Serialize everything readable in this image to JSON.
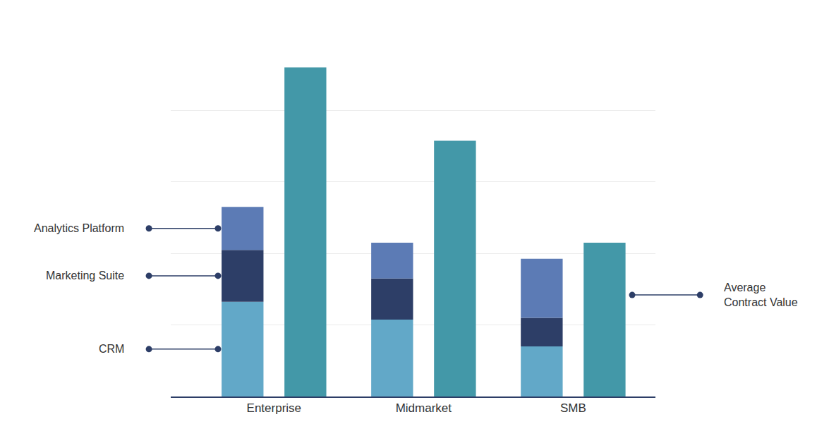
{
  "chart_data": {
    "type": "bar",
    "categories": [
      "Enterprise",
      "Midmarket",
      "SMB"
    ],
    "series": [
      {
        "name": "CRM",
        "color": "#62a8c8",
        "stacked": true,
        "values": [
          26.5,
          21.5,
          14
        ]
      },
      {
        "name": "Marketing Suite",
        "color": "#2d3e67",
        "stacked": true,
        "values": [
          14.5,
          11.5,
          8
        ]
      },
      {
        "name": "Analytics Platform",
        "color": "#5c7bb5",
        "stacked": true,
        "values": [
          12,
          10,
          16.5
        ]
      },
      {
        "name": "Average Contract Value",
        "color": "#4398a8",
        "stacked": false,
        "values": [
          92,
          71.5,
          43
        ]
      }
    ],
    "ylim": [
      0,
      100
    ],
    "yticks": [
      0,
      20,
      40,
      60,
      80,
      100
    ],
    "grid": true,
    "tick_labels": "x"
  }
}
